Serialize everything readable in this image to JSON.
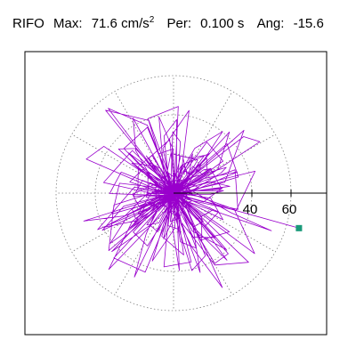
{
  "header": {
    "station": "RIFO",
    "max_label": "Max:",
    "max_value": "71.6",
    "max_unit_base": "cm/s",
    "max_unit_exp": "2",
    "per_label": "Per:",
    "per_value": "0.100 s",
    "ang_label": "Ang:",
    "ang_value": "-15.6"
  },
  "colors": {
    "trace": "#9900cc",
    "marker": "#1a9a7a",
    "grid": "#808080",
    "frame": "#000000"
  },
  "chart_data": {
    "type": "scatter",
    "title": "",
    "xlabel": "",
    "ylabel": "",
    "r_ticks": [
      40,
      60
    ],
    "r_grid": [
      20,
      40,
      60
    ],
    "rmax": 71.6,
    "grid": true,
    "end_point": {
      "r": 66.5,
      "angle_deg": -15.6
    }
  }
}
